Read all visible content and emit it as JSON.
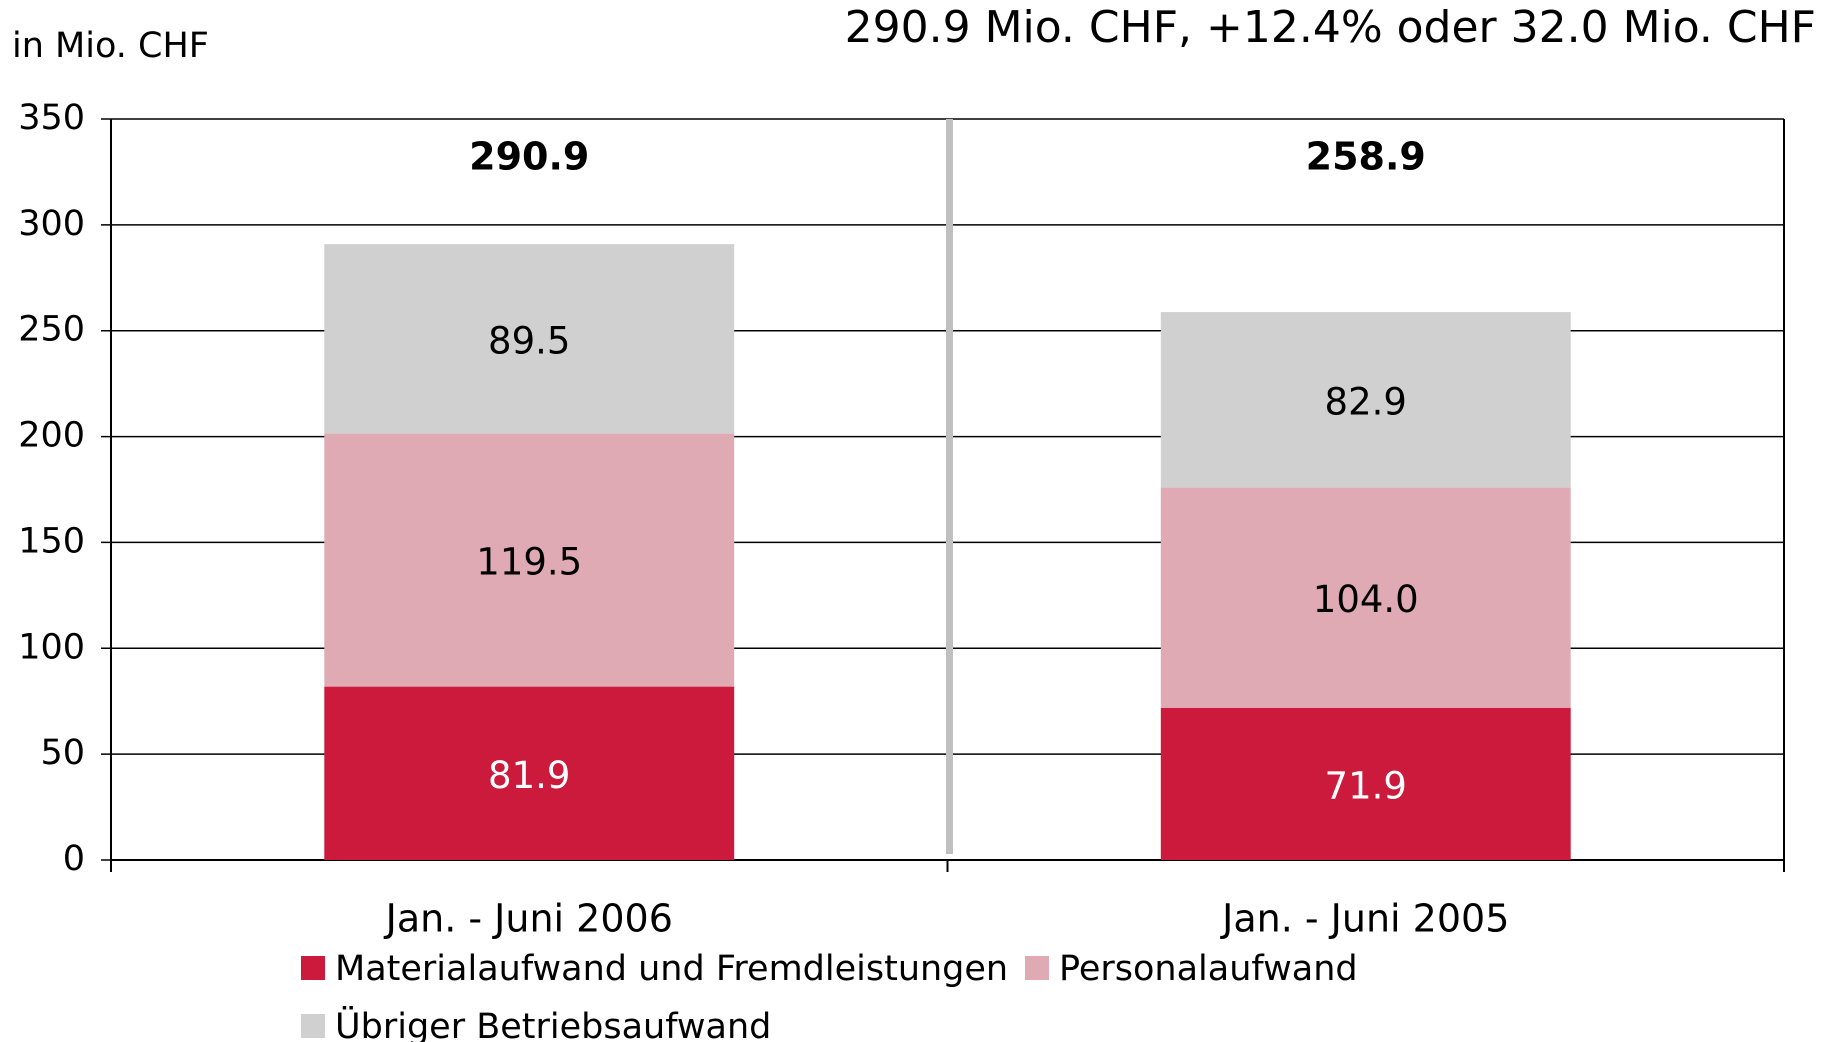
{
  "chart_data": {
    "type": "stacked_bar",
    "title": "290.9 Mio. CHF, +12.4% oder 32.0 Mio. CHF",
    "y_label": "in Mio. CHF",
    "categories": [
      "Jan. - Juni 2006",
      "Jan. - Juni 2005"
    ],
    "series": [
      {
        "name": "Materialaufwand und Fremdleistungen",
        "color": "#cc1a3d",
        "label_color": "#ffffff",
        "values": [
          81.9,
          71.9
        ]
      },
      {
        "name": "Personalaufwand",
        "color": "#e0aab4",
        "label_color": "#000000",
        "values": [
          119.5,
          104.0
        ],
        "value_labels": [
          "119.5",
          "104.0"
        ]
      },
      {
        "name": "Übriger Betriebsaufwand",
        "color": "#d0d0d0",
        "label_color": "#000000",
        "values": [
          89.5,
          82.9
        ]
      }
    ],
    "totals": [
      290.9,
      258.9
    ],
    "ylim": [
      0,
      350
    ],
    "yticks": [
      0,
      50,
      100,
      150,
      200,
      250,
      300,
      350
    ],
    "grid": true
  }
}
